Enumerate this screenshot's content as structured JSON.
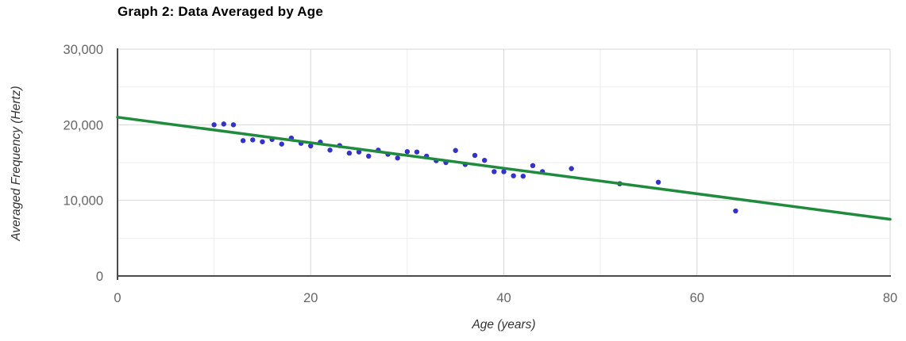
{
  "chart_data": {
    "type": "scatter",
    "title": "Graph 2: Data Averaged by Age",
    "xlabel": "Age (years)",
    "ylabel": "Averaged Frequency (Hertz)",
    "xlim": [
      0,
      80
    ],
    "ylim": [
      0,
      30000
    ],
    "x_major_ticks": [
      0,
      20,
      40,
      60,
      80
    ],
    "x_tick_labels": [
      "0",
      "20",
      "40",
      "60",
      "80"
    ],
    "y_major_ticks": [
      0,
      10000,
      20000,
      30000
    ],
    "y_tick_labels": [
      "0",
      "10,000",
      "20,000",
      "30,000"
    ],
    "x_major_step": 20,
    "x_minor_step": 10,
    "y_major_step": 10000,
    "y_minor_step": 5000,
    "grid": true,
    "legend_position": "none",
    "series": [
      {
        "name": "averaged-frequency-points",
        "type": "scatter",
        "color": "#3333cc",
        "points": [
          [
            10,
            20000
          ],
          [
            11,
            20100
          ],
          [
            12,
            20000
          ],
          [
            13,
            17900
          ],
          [
            14,
            18000
          ],
          [
            15,
            17750
          ],
          [
            16,
            18050
          ],
          [
            17,
            17450
          ],
          [
            18,
            18250
          ],
          [
            19,
            17550
          ],
          [
            20,
            17200
          ],
          [
            21,
            17700
          ],
          [
            22,
            16650
          ],
          [
            23,
            17250
          ],
          [
            24,
            16250
          ],
          [
            25,
            16400
          ],
          [
            26,
            15850
          ],
          [
            27,
            16650
          ],
          [
            28,
            16100
          ],
          [
            29,
            15600
          ],
          [
            30,
            16450
          ],
          [
            31,
            16400
          ],
          [
            32,
            15850
          ],
          [
            33,
            15250
          ],
          [
            34,
            15000
          ],
          [
            35,
            16600
          ],
          [
            36,
            14750
          ],
          [
            37,
            15950
          ],
          [
            38,
            15300
          ],
          [
            39,
            13800
          ],
          [
            40,
            13800
          ],
          [
            41,
            13250
          ],
          [
            42,
            13200
          ],
          [
            43,
            14600
          ],
          [
            44,
            13800
          ],
          [
            47,
            14200
          ],
          [
            52,
            12200
          ],
          [
            56,
            12400
          ],
          [
            64,
            8600
          ]
        ]
      },
      {
        "name": "trend-line",
        "type": "line",
        "color": "#1f8b3c",
        "points": [
          [
            0,
            21000
          ],
          [
            80,
            7500
          ]
        ]
      }
    ],
    "colors": {
      "grid_major": "#d7d7d7",
      "grid_minor": "#eeeeee",
      "axis": "#4a4a4a",
      "tick_text": "#666666",
      "axis_title_text": "#333333",
      "title_text": "#000000",
      "background": "#ffffff"
    }
  }
}
